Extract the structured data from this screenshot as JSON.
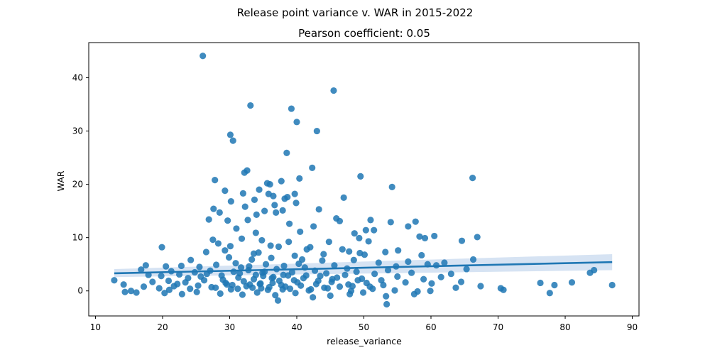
{
  "chart_data": {
    "type": "scatter",
    "suptitle": "Release point variance v. WAR in 2015-2022",
    "title": "Pearson coefficient: 0.05",
    "xlabel": "release_variance",
    "ylabel": "WAR",
    "xlim": [
      9,
      91
    ],
    "ylim": [
      -4.7,
      46.6
    ],
    "xticks": [
      10,
      20,
      30,
      40,
      50,
      60,
      70,
      80,
      90
    ],
    "yticks": [
      0,
      10,
      20,
      30,
      40
    ],
    "grid": false,
    "point_color": "#1f77b4",
    "band_color": "#aec7e8",
    "regression": {
      "x": [
        12.8,
        87.0
      ],
      "y": [
        3.3,
        5.4
      ],
      "band_upper": [
        4.1,
        6.9
      ],
      "band_lower": [
        2.6,
        3.9
      ]
    },
    "points": [
      [
        26.0,
        44.1
      ],
      [
        45.5,
        37.6
      ],
      [
        33.1,
        34.8
      ],
      [
        39.2,
        34.2
      ],
      [
        40.0,
        31.7
      ],
      [
        43.0,
        30.0
      ],
      [
        30.1,
        29.3
      ],
      [
        30.5,
        28.2
      ],
      [
        38.5,
        25.9
      ],
      [
        32.6,
        22.6
      ],
      [
        32.2,
        22.2
      ],
      [
        42.3,
        23.1
      ],
      [
        66.2,
        21.2
      ],
      [
        49.5,
        21.5
      ],
      [
        40.4,
        21.1
      ],
      [
        27.8,
        20.8
      ],
      [
        35.6,
        20.2
      ],
      [
        37.7,
        20.6
      ],
      [
        36.0,
        20.0
      ],
      [
        54.2,
        19.5
      ],
      [
        29.3,
        18.8
      ],
      [
        34.4,
        19.0
      ],
      [
        32.0,
        18.3
      ],
      [
        35.8,
        18.2
      ],
      [
        39.7,
        18.2
      ],
      [
        36.5,
        17.8
      ],
      [
        38.6,
        17.6
      ],
      [
        47.0,
        17.5
      ],
      [
        30.2,
        16.8
      ],
      [
        38.2,
        17.3
      ],
      [
        33.7,
        17.1
      ],
      [
        39.9,
        16.5
      ],
      [
        36.7,
        16.1
      ],
      [
        32.3,
        15.8
      ],
      [
        27.6,
        15.4
      ],
      [
        28.5,
        14.7
      ],
      [
        43.3,
        15.3
      ],
      [
        35.2,
        15.0
      ],
      [
        37.9,
        15.1
      ],
      [
        34.0,
        14.3
      ],
      [
        36.9,
        14.7
      ],
      [
        26.9,
        13.4
      ],
      [
        45.9,
        13.6
      ],
      [
        32.7,
        13.3
      ],
      [
        29.7,
        13.2
      ],
      [
        46.4,
        13.1
      ],
      [
        54.0,
        12.9
      ],
      [
        51.0,
        13.3
      ],
      [
        57.7,
        13.0
      ],
      [
        38.9,
        12.6
      ],
      [
        42.5,
        12.1
      ],
      [
        31.0,
        11.7
      ],
      [
        50.3,
        11.4
      ],
      [
        51.5,
        11.4
      ],
      [
        56.6,
        12.1
      ],
      [
        40.5,
        11.1
      ],
      [
        48.6,
        10.8
      ],
      [
        33.9,
        10.9
      ],
      [
        58.3,
        10.2
      ],
      [
        59.1,
        9.9
      ],
      [
        60.5,
        10.3
      ],
      [
        66.9,
        10.1
      ],
      [
        64.6,
        9.4
      ],
      [
        27.5,
        9.6
      ],
      [
        31.8,
        9.8
      ],
      [
        34.8,
        9.5
      ],
      [
        49.3,
        9.9
      ],
      [
        38.8,
        9.2
      ],
      [
        44.8,
        9.2
      ],
      [
        50.7,
        9.3
      ],
      [
        28.3,
        8.9
      ],
      [
        30.1,
        8.4
      ],
      [
        19.9,
        8.2
      ],
      [
        36.1,
        8.5
      ],
      [
        37.3,
        8.3
      ],
      [
        42.0,
        8.2
      ],
      [
        46.8,
        7.8
      ],
      [
        29.3,
        7.6
      ],
      [
        41.5,
        7.8
      ],
      [
        47.8,
        7.4
      ],
      [
        49.4,
        7.1
      ],
      [
        53.2,
        7.3
      ],
      [
        55.1,
        7.6
      ],
      [
        26.5,
        7.3
      ],
      [
        33.6,
        7.0
      ],
      [
        34.3,
        7.2
      ],
      [
        39.7,
        6.6
      ],
      [
        44.0,
        6.9
      ],
      [
        50.1,
        6.8
      ],
      [
        58.6,
        6.7
      ],
      [
        24.2,
        5.8
      ],
      [
        29.9,
        6.3
      ],
      [
        33.3,
        5.9
      ],
      [
        36.2,
        6.2
      ],
      [
        40.8,
        5.9
      ],
      [
        43.8,
        5.7
      ],
      [
        48.5,
        5.8
      ],
      [
        52.2,
        5.3
      ],
      [
        56.6,
        5.5
      ],
      [
        59.5,
        5.0
      ],
      [
        62.0,
        5.3
      ],
      [
        66.3,
        5.9
      ],
      [
        17.5,
        4.8
      ],
      [
        20.5,
        4.6
      ],
      [
        22.8,
        4.7
      ],
      [
        25.5,
        4.5
      ],
      [
        28.0,
        4.9
      ],
      [
        31.7,
        4.4
      ],
      [
        35.4,
        5.0
      ],
      [
        38.1,
        4.7
      ],
      [
        41.2,
        4.4
      ],
      [
        45.6,
        4.8
      ],
      [
        47.5,
        4.2
      ],
      [
        54.8,
        4.6
      ],
      [
        60.8,
        4.8
      ],
      [
        65.3,
        4.1
      ],
      [
        16.8,
        4.0
      ],
      [
        21.3,
        3.7
      ],
      [
        24.8,
        3.5
      ],
      [
        27.1,
        3.8
      ],
      [
        30.6,
        3.6
      ],
      [
        32.8,
        3.9
      ],
      [
        34.9,
        3.4
      ],
      [
        37.0,
        4.1
      ],
      [
        39.3,
        3.5
      ],
      [
        42.7,
        3.8
      ],
      [
        44.4,
        3.3
      ],
      [
        48.9,
        3.6
      ],
      [
        51.6,
        3.2
      ],
      [
        53.6,
        3.9
      ],
      [
        57.1,
        3.4
      ],
      [
        63.0,
        3.2
      ],
      [
        83.7,
        3.4
      ],
      [
        84.3,
        3.9
      ],
      [
        17.9,
        3.0
      ],
      [
        19.8,
        2.8
      ],
      [
        22.5,
        3.1
      ],
      [
        25.7,
        2.7
      ],
      [
        28.8,
        2.9
      ],
      [
        31.3,
        2.5
      ],
      [
        33.9,
        3.0
      ],
      [
        36.5,
        2.6
      ],
      [
        38.7,
        2.9
      ],
      [
        41.0,
        2.4
      ],
      [
        43.5,
        2.8
      ],
      [
        46.0,
        2.5
      ],
      [
        49.7,
        2.3
      ],
      [
        55.0,
        2.7
      ],
      [
        58.9,
        2.2
      ],
      [
        61.5,
        2.6
      ],
      [
        18.5,
        1.7
      ],
      [
        20.9,
        1.9
      ],
      [
        23.4,
        1.6
      ],
      [
        26.2,
        2.0
      ],
      [
        29.4,
        1.5
      ],
      [
        32.1,
        1.8
      ],
      [
        34.6,
        1.4
      ],
      [
        37.4,
        1.9
      ],
      [
        40.1,
        1.6
      ],
      [
        42.9,
        1.3
      ],
      [
        45.2,
        1.7
      ],
      [
        47.7,
        1.2
      ],
      [
        50.4,
        1.5
      ],
      [
        52.9,
        1.1
      ],
      [
        56.2,
        1.6
      ],
      [
        60.1,
        1.4
      ],
      [
        64.5,
        1.7
      ],
      [
        67.4,
        0.9
      ],
      [
        76.3,
        1.5
      ],
      [
        78.4,
        1.1
      ],
      [
        81.0,
        1.6
      ],
      [
        87.0,
        1.1
      ],
      [
        12.8,
        2.0
      ],
      [
        14.2,
        1.2
      ],
      [
        17.2,
        0.8
      ],
      [
        19.5,
        0.5
      ],
      [
        21.7,
        0.9
      ],
      [
        24.1,
        0.4
      ],
      [
        27.3,
        0.7
      ],
      [
        30.2,
        0.3
      ],
      [
        33.4,
        0.6
      ],
      [
        35.7,
        0.2
      ],
      [
        38.3,
        0.8
      ],
      [
        41.8,
        0.1
      ],
      [
        44.6,
        0.5
      ],
      [
        48.1,
        0.0
      ],
      [
        51.3,
        0.4
      ],
      [
        54.6,
        0.1
      ],
      [
        58.0,
        -0.1
      ],
      [
        63.7,
        0.6
      ],
      [
        70.4,
        0.5
      ],
      [
        70.8,
        0.2
      ],
      [
        14.4,
        -0.2
      ],
      [
        15.3,
        0.0
      ],
      [
        16.1,
        -0.3
      ],
      [
        20.3,
        -0.4
      ],
      [
        22.9,
        -0.6
      ],
      [
        25.1,
        -0.2
      ],
      [
        28.6,
        -0.5
      ],
      [
        31.9,
        -0.7
      ],
      [
        34.1,
        -0.3
      ],
      [
        36.8,
        -0.8
      ],
      [
        39.8,
        -0.4
      ],
      [
        42.4,
        -1.2
      ],
      [
        45.0,
        -0.9
      ],
      [
        47.9,
        -0.6
      ],
      [
        49.9,
        -0.3
      ],
      [
        53.3,
        -1.0
      ],
      [
        57.5,
        -0.6
      ],
      [
        59.9,
        0.0
      ],
      [
        77.7,
        -0.4
      ],
      [
        37.2,
        -1.8
      ],
      [
        53.4,
        -2.5
      ],
      [
        21.0,
        0.2
      ],
      [
        22.2,
        1.3
      ],
      [
        23.8,
        2.4
      ],
      [
        25.3,
        1.0
      ],
      [
        26.6,
        3.2
      ],
      [
        27.9,
        0.6
      ],
      [
        29.0,
        2.1
      ],
      [
        30.4,
        1.1
      ],
      [
        31.5,
        3.3
      ],
      [
        32.5,
        0.9
      ],
      [
        33.6,
        2.2
      ],
      [
        34.5,
        1.3
      ],
      [
        35.2,
        3.6
      ],
      [
        35.9,
        0.7
      ],
      [
        36.3,
        2.4
      ],
      [
        37.7,
        1.1
      ],
      [
        38.0,
        3.0
      ],
      [
        39.0,
        0.4
      ],
      [
        39.6,
        2.0
      ],
      [
        40.6,
        1.0
      ],
      [
        41.4,
        2.9
      ],
      [
        42.1,
        0.3
      ],
      [
        43.2,
        1.9
      ],
      [
        44.1,
        0.6
      ],
      [
        45.3,
        2.2
      ],
      [
        46.4,
        0.8
      ],
      [
        47.2,
        3.0
      ],
      [
        48.3,
        0.9
      ],
      [
        49.1,
        2.0
      ],
      [
        50.9,
        0.8
      ],
      [
        52.6,
        2.0
      ],
      [
        31.2,
        0.4
      ],
      [
        33.0,
        1.2
      ],
      [
        34.7,
        0.5
      ],
      [
        36.4,
        1.5
      ],
      [
        37.9,
        0.3
      ],
      [
        29.6,
        1.2
      ],
      [
        32.9,
        4.6
      ],
      [
        35.0,
        2.8
      ],
      [
        30.9,
        5.2
      ],
      [
        40.3,
        5.1
      ]
    ]
  }
}
